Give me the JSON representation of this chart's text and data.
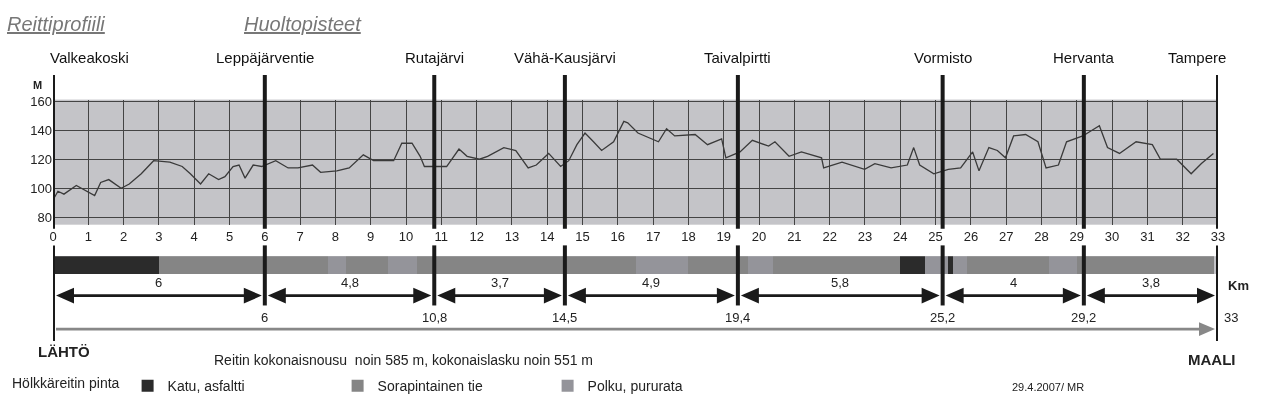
{
  "chart_data": [
    {
      "type": "line",
      "title": "Reittiprofiili",
      "subtitle": "Huoltopisteet",
      "ylabel": "M",
      "xlabel": "Km",
      "x": [
        0,
        0.14,
        0.31,
        0.66,
        1.18,
        1.35,
        1.58,
        1.93,
        2.16,
        2.5,
        2.85,
        3.31,
        3.66,
        3.89,
        4.18,
        4.41,
        4.69,
        4.87,
        5.1,
        5.27,
        5.44,
        5.67,
        5.91,
        6.31,
        6.66,
        6.94,
        7.35,
        7.58,
        8.04,
        8.39,
        8.79,
        9.08,
        9.65,
        9.88,
        10.17,
        10.4,
        10.52,
        11.15,
        11.5,
        11.73,
        12.08,
        12.31,
        12.77,
        13.11,
        13.46,
        13.69,
        14.04,
        14.38,
        14.61,
        14.84,
        15.07,
        15.31,
        15.54,
        15.88,
        16.17,
        16.28,
        16.57,
        17.15,
        17.38,
        17.61,
        18.19,
        18.54,
        18.94,
        19.06,
        19.46,
        19.81,
        20.27,
        20.45,
        20.85,
        21.2,
        21.77,
        21.83,
        22.35,
        22.99,
        23.28,
        23.74,
        24.2,
        24.38,
        24.55,
        24.95,
        25.36,
        25.71,
        26.05,
        26.23,
        26.51,
        26.75,
        26.98,
        27.21,
        27.55,
        27.9,
        28.13,
        28.48,
        28.71,
        29.17,
        29.64,
        29.87,
        30.21,
        30.68,
        31.14,
        31.37,
        31.83,
        32.24,
        32.53,
        32.87
      ],
      "series": [
        {
          "color": "#3a3a3a",
          "values": [
            92,
            98,
            96,
            102,
            95,
            104,
            106,
            100,
            103,
            110,
            119,
            118,
            115,
            110,
            103,
            110,
            106,
            108,
            115,
            116,
            107,
            116,
            115,
            119,
            114,
            114,
            116,
            111,
            112,
            114,
            123,
            119,
            119,
            131,
            131,
            122,
            115,
            115,
            127,
            122,
            120,
            122,
            128,
            126,
            114,
            116,
            124,
            115,
            119,
            130,
            138,
            132,
            126,
            132,
            146,
            145,
            138,
            132,
            141,
            136,
            137,
            130,
            134,
            121,
            125,
            133,
            129,
            132,
            122,
            125,
            121,
            114,
            118,
            113,
            117,
            114,
            116,
            128,
            116,
            110,
            113,
            114,
            125,
            112,
            128,
            126,
            121,
            136,
            137,
            132,
            114,
            116,
            132,
            136,
            143,
            128,
            124,
            132,
            130,
            120,
            120,
            110,
            117,
            124
          ]
        }
      ],
      "xlim": [
        0,
        33
      ],
      "xticks": [
        0,
        1,
        2,
        3,
        4,
        5,
        6,
        7,
        8,
        9,
        10,
        11,
        12,
        13,
        14,
        15,
        16,
        17,
        18,
        19,
        20,
        21,
        22,
        23,
        24,
        25,
        26,
        27,
        28,
        29,
        30,
        31,
        32,
        33
      ],
      "ylim": [
        75,
        161
      ],
      "yticks": [
        80,
        100,
        120,
        140,
        160
      ],
      "grid": true,
      "line_style": "solid",
      "marker": "none",
      "ref_lines": [
        {
          "axis": "x",
          "value": 0,
          "label": "Valkeakoski"
        },
        {
          "axis": "x",
          "value": 6,
          "label": "Leppäjärventie"
        },
        {
          "axis": "x",
          "value": 10.8,
          "label": "Rutajärvi"
        },
        {
          "axis": "x",
          "value": 14.5,
          "label": "Vähä-Kausjärvi"
        },
        {
          "axis": "x",
          "value": 19.4,
          "label": "Taivalpirtti"
        },
        {
          "axis": "x",
          "value": 25.2,
          "label": "Vormisto"
        },
        {
          "axis": "x",
          "value": 29.2,
          "label": "Hervanta"
        },
        {
          "axis": "x",
          "value": 33,
          "label": "Tampere"
        }
      ],
      "annotations": [
        "6",
        "4,8",
        "3,7",
        "4,9",
        "5,8",
        "4",
        "3,8",
        "6",
        "10,8",
        "14,5",
        "19,4",
        "25,2",
        "29,2",
        "33",
        "LÄHTÖ",
        "MAALI",
        "Reitin kokonaisnousu  noin 585 m, kokonaislasku noin 551 m",
        "29.4.2007/ MR"
      ]
    },
    {
      "type": "bar",
      "orientation": "horizontal",
      "stacked": true,
      "categories": [
        null
      ],
      "xlim": [
        0,
        33
      ],
      "tick_labels": false,
      "legend": "bottom",
      "legend_title": "Hölkkäreitin pinta",
      "series": [
        {
          "name": "Katu, asfaltti",
          "color": "#2b2b2b",
          "values": [
            3
          ]
        },
        {
          "name": "Sorapintainen tie",
          "color": "#858585",
          "values": [
            4.8
          ]
        },
        {
          "name": "Polku, pururata",
          "color": "#94949a",
          "values": [
            0.5
          ]
        },
        {
          "color": "#858585",
          "values": [
            1.2
          ]
        },
        {
          "color": "#94949a",
          "values": [
            0.8
          ]
        },
        {
          "color": "#858585",
          "values": [
            6.2
          ]
        },
        {
          "color": "#94949a",
          "values": [
            1.5
          ]
        },
        {
          "color": "#858585",
          "values": [
            1.7
          ]
        },
        {
          "color": "#94949a",
          "values": [
            0.7
          ]
        },
        {
          "color": "#858585",
          "values": [
            3.6
          ]
        },
        {
          "color": "#2b2b2b",
          "values": [
            0.7
          ]
        },
        {
          "color": "#94949a",
          "values": [
            0.65
          ]
        },
        {
          "color": "#2b2b2b",
          "values": [
            0.15
          ]
        },
        {
          "color": "#94949a",
          "values": [
            0.4
          ]
        },
        {
          "color": "#858585",
          "values": [
            2.3
          ]
        },
        {
          "color": "#94949a",
          "values": [
            0.8
          ]
        },
        {
          "color": "#858585",
          "values": [
            3.9
          ]
        }
      ]
    }
  ]
}
